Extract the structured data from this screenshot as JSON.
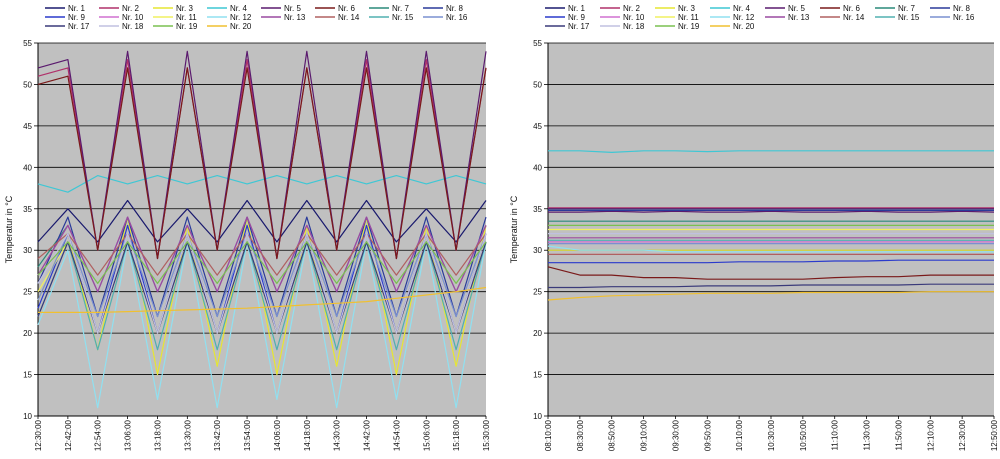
{
  "legend": {
    "entries": [
      "Nr. 1",
      "Nr. 2",
      "Nr. 3",
      "Nr. 4",
      "Nr. 5",
      "Nr. 6",
      "Nr. 7",
      "Nr. 8",
      "Nr. 9",
      "Nr. 10",
      "Nr. 11",
      "Nr. 12",
      "Nr. 13",
      "Nr. 14",
      "Nr. 15",
      "Nr. 16",
      "Nr. 17",
      "Nr. 18",
      "Nr. 19",
      "Nr. 20"
    ],
    "colors": [
      "#1a1a6e",
      "#b0306a",
      "#e6e632",
      "#3fc7d4",
      "#5a1a6e",
      "#7a1a1a",
      "#2a8a7a",
      "#2a3a9a",
      "#2a3acc",
      "#d070d0",
      "#f0f060",
      "#90e0f0",
      "#9a4aa0",
      "#b06060",
      "#50b0b0",
      "#7a90d0",
      "#3a3a7a",
      "#c0c0e0",
      "#7ac050",
      "#f0c030"
    ]
  },
  "chart_data": [
    {
      "type": "line",
      "ylabel": "Temperatur in °C",
      "ylim": [
        10,
        55
      ],
      "yticks": [
        "10",
        "15",
        "20",
        "25",
        "30",
        "35",
        "40",
        "45",
        "50",
        "55"
      ],
      "x": [
        "12:30:00",
        "12:42:00",
        "12:54:00",
        "13:06:00",
        "13:18:00",
        "13:30:00",
        "13:42:00",
        "13:54:00",
        "14:06:00",
        "14:18:00",
        "14:30:00",
        "14:42:00",
        "14:54:00",
        "15:06:00",
        "15:18:00",
        "15:30:00"
      ],
      "grid": true,
      "legend_position": "top",
      "series": [
        {
          "name": "Nr. 1",
          "values": [
            31,
            35,
            31,
            36,
            31,
            35,
            31,
            36,
            31,
            36,
            31,
            36,
            31,
            35,
            31,
            36
          ]
        },
        {
          "name": "Nr. 2",
          "values": [
            51,
            52,
            30,
            53,
            29,
            52,
            30,
            53,
            29,
            52,
            30,
            53,
            29,
            53,
            30,
            52
          ]
        },
        {
          "name": "Nr. 3",
          "values": [
            24,
            32,
            18,
            34,
            15,
            33,
            16,
            34,
            15,
            33,
            16,
            34,
            15,
            33,
            16,
            33
          ]
        },
        {
          "name": "Nr. 4",
          "values": [
            38,
            37,
            39,
            38,
            39,
            38,
            39,
            38,
            39,
            38,
            39,
            38,
            39,
            38,
            39,
            38
          ]
        },
        {
          "name": "Nr. 5",
          "values": [
            52,
            53,
            30,
            54,
            29,
            54,
            30,
            54,
            29,
            54,
            30,
            54,
            29,
            54,
            30,
            54
          ]
        },
        {
          "name": "Nr. 6",
          "values": [
            50,
            51,
            30,
            52,
            29,
            52,
            30,
            52,
            29,
            52,
            30,
            52,
            29,
            52,
            30,
            52
          ]
        },
        {
          "name": "Nr. 7",
          "values": [
            28,
            33,
            25,
            34,
            25,
            33,
            25,
            34,
            25,
            33,
            25,
            34,
            25,
            33,
            25,
            33
          ]
        },
        {
          "name": "Nr. 8",
          "values": [
            26,
            34,
            22,
            34,
            22,
            34,
            22,
            34,
            22,
            34,
            22,
            34,
            22,
            34,
            22,
            34
          ]
        },
        {
          "name": "Nr. 9",
          "values": [
            23,
            32,
            20,
            33,
            20,
            32,
            20,
            33,
            20,
            32,
            20,
            33,
            20,
            32,
            20,
            32
          ]
        },
        {
          "name": "Nr. 10",
          "values": [
            27,
            33,
            25,
            34,
            25,
            33,
            25,
            34,
            25,
            33,
            25,
            34,
            25,
            33,
            25,
            33
          ]
        },
        {
          "name": "Nr. 11",
          "values": [
            25,
            31,
            20,
            31,
            20,
            31,
            20,
            31,
            20,
            31,
            20,
            31,
            20,
            31,
            20,
            31
          ]
        },
        {
          "name": "Nr. 12",
          "values": [
            21,
            30,
            11,
            31,
            12,
            31,
            11,
            31,
            12,
            31,
            11,
            31,
            12,
            31,
            11,
            31
          ]
        },
        {
          "name": "Nr. 13",
          "values": [
            27,
            33,
            25,
            34,
            25,
            33,
            25,
            34,
            25,
            33,
            25,
            34,
            25,
            33,
            25,
            33
          ]
        },
        {
          "name": "Nr. 14",
          "values": [
            29,
            32,
            27,
            32,
            27,
            32,
            27,
            32,
            27,
            32,
            27,
            32,
            27,
            32,
            27,
            32
          ]
        },
        {
          "name": "Nr. 15",
          "values": [
            22,
            31,
            18,
            31,
            18,
            31,
            18,
            31,
            18,
            31,
            18,
            31,
            18,
            31,
            18,
            31
          ]
        },
        {
          "name": "Nr. 16",
          "values": [
            24,
            32,
            22,
            32,
            22,
            32,
            22,
            32,
            22,
            32,
            22,
            32,
            22,
            32,
            22,
            32
          ]
        },
        {
          "name": "Nr. 17",
          "values": [
            22,
            31,
            20,
            31,
            20,
            31,
            20,
            31,
            20,
            31,
            20,
            31,
            20,
            31,
            20,
            31
          ]
        },
        {
          "name": "Nr. 18",
          "values": [
            26,
            32,
            20,
            32,
            20,
            32,
            20,
            32,
            20,
            32,
            20,
            32,
            20,
            32,
            20,
            32
          ]
        },
        {
          "name": "Nr. 19",
          "values": [
            27,
            31,
            26,
            31,
            26,
            31,
            26,
            31,
            26,
            31,
            26,
            31,
            26,
            31,
            26,
            31
          ]
        },
        {
          "name": "Nr. 20",
          "values": [
            22.5,
            22.5,
            22.5,
            22.6,
            22.7,
            22.8,
            22.9,
            23,
            23.2,
            23.4,
            23.6,
            23.8,
            24.2,
            24.6,
            25,
            25.5
          ]
        }
      ]
    },
    {
      "type": "line",
      "ylabel": "Temperatur in °C",
      "ylim": [
        10,
        55
      ],
      "yticks": [
        "10",
        "15",
        "20",
        "25",
        "30",
        "35",
        "40",
        "45",
        "50",
        "55"
      ],
      "x": [
        "08:10:00",
        "08:30:00",
        "08:50:00",
        "09:10:00",
        "09:30:00",
        "09:50:00",
        "10:10:00",
        "10:30:00",
        "10:50:00",
        "11:10:00",
        "11:30:00",
        "11:50:00",
        "12:10:00",
        "12:30:00",
        "12:50:00"
      ],
      "grid": true,
      "legend_position": "top",
      "series": [
        {
          "name": "Nr. 1",
          "values": [
            35,
            35,
            35,
            35,
            35,
            35,
            35,
            35,
            35,
            35,
            35,
            35,
            35,
            35,
            35
          ]
        },
        {
          "name": "Nr. 2",
          "values": [
            35.1,
            35.1,
            35.1,
            35.1,
            35.1,
            35.1,
            35.1,
            35.1,
            35.1,
            35.1,
            35.1,
            35.1,
            35.1,
            35.1,
            35.1
          ]
        },
        {
          "name": "Nr. 3",
          "values": [
            30,
            30,
            30,
            30,
            30,
            30,
            30,
            30,
            30,
            30,
            30,
            30,
            30,
            30,
            30
          ]
        },
        {
          "name": "Nr. 4",
          "values": [
            42,
            42,
            41.8,
            42,
            42,
            41.9,
            42,
            42,
            42,
            42,
            42,
            42,
            42,
            42,
            42
          ]
        },
        {
          "name": "Nr. 5",
          "values": [
            34.6,
            34.6,
            34.7,
            34.6,
            34.7,
            34.6,
            34.6,
            34.7,
            34.6,
            34.6,
            34.7,
            34.6,
            34.6,
            34.7,
            34.6
          ]
        },
        {
          "name": "Nr. 6",
          "values": [
            28,
            27,
            27,
            26.7,
            26.7,
            26.5,
            26.5,
            26.5,
            26.5,
            26.7,
            26.8,
            26.8,
            27,
            27,
            27
          ]
        },
        {
          "name": "Nr. 7",
          "values": [
            33.5,
            33.5,
            33.5,
            33.5,
            33.5,
            33.5,
            33.5,
            33.5,
            33.5,
            33.5,
            33.5,
            33.5,
            33.5,
            33.5,
            33.5
          ]
        },
        {
          "name": "Nr. 8",
          "values": [
            34.8,
            34.8,
            34.8,
            34.8,
            34.8,
            34.8,
            34.8,
            34.8,
            34.8,
            34.8,
            34.8,
            34.8,
            34.8,
            34.8,
            34.8
          ]
        },
        {
          "name": "Nr. 9",
          "values": [
            28.5,
            28.5,
            28.5,
            28.5,
            28.5,
            28.5,
            28.6,
            28.6,
            28.6,
            28.7,
            28.7,
            28.8,
            28.8,
            28.8,
            28.8
          ]
        },
        {
          "name": "Nr. 10",
          "values": [
            31,
            31,
            31,
            31,
            31,
            31,
            31,
            31,
            31,
            31,
            31,
            31,
            31,
            31,
            31
          ]
        },
        {
          "name": "Nr. 11",
          "values": [
            32.5,
            32.5,
            32.5,
            32.5,
            32.5,
            32.5,
            32.5,
            32.5,
            32.5,
            32.5,
            32.5,
            32.5,
            32.5,
            32.5,
            32.5
          ]
        },
        {
          "name": "Nr. 12",
          "values": [
            30.5,
            30,
            30,
            30,
            29.8,
            29.8,
            29.8,
            29.8,
            29.8,
            29.8,
            29.8,
            29.8,
            29.8,
            29.8,
            29.8
          ]
        },
        {
          "name": "Nr. 13",
          "values": [
            31.5,
            31.5,
            31.5,
            31.5,
            31.5,
            31.5,
            31.5,
            31.5,
            31.5,
            31.5,
            31.5,
            31.5,
            31.5,
            31.5,
            31.5
          ]
        },
        {
          "name": "Nr. 14",
          "values": [
            29.5,
            29.5,
            29.5,
            29.5,
            29.5,
            29.5,
            29.5,
            29.5,
            29.5,
            29.5,
            29.5,
            29.5,
            29.5,
            29.5,
            29.5
          ]
        },
        {
          "name": "Nr. 15",
          "values": [
            31.2,
            31.2,
            31.2,
            31.2,
            31.2,
            31.2,
            31.2,
            31.2,
            31.2,
            31.2,
            31.2,
            31.2,
            31.2,
            31.2,
            31.2
          ]
        },
        {
          "name": "Nr. 16",
          "values": [
            30.8,
            30.8,
            30.8,
            30.8,
            30.8,
            30.8,
            30.8,
            30.8,
            30.8,
            30.8,
            30.8,
            30.8,
            30.8,
            30.8,
            30.8
          ]
        },
        {
          "name": "Nr. 17",
          "values": [
            25.5,
            25.5,
            25.6,
            25.6,
            25.6,
            25.7,
            25.7,
            25.7,
            25.8,
            25.8,
            25.8,
            25.8,
            25.9,
            25.9,
            25.9
          ]
        },
        {
          "name": "Nr. 18",
          "values": [
            32,
            32,
            32,
            32,
            32,
            32,
            32,
            32,
            32,
            32,
            32,
            32,
            32,
            32,
            32
          ]
        },
        {
          "name": "Nr. 19",
          "values": [
            33,
            33,
            33,
            33,
            33,
            33,
            33,
            33,
            33,
            33,
            33,
            33,
            33,
            33,
            33
          ]
        },
        {
          "name": "Nr. 20",
          "values": [
            24,
            24.3,
            24.5,
            24.6,
            24.7,
            24.8,
            24.8,
            24.8,
            24.9,
            24.9,
            24.9,
            24.9,
            25,
            25,
            25
          ]
        }
      ]
    }
  ]
}
